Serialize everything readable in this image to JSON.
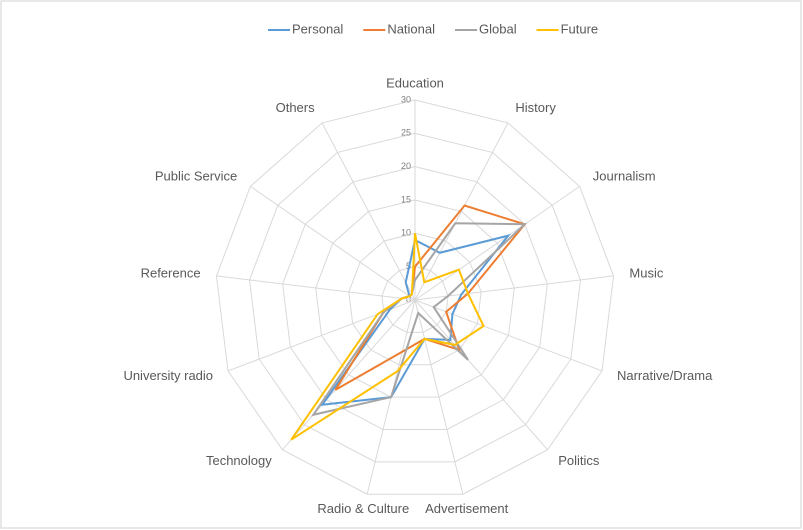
{
  "chart_data": {
    "type": "radar",
    "categories": [
      "Education",
      "History",
      "Journalism",
      "Music",
      "Narrative/Drama",
      "Politics",
      "Advertisement",
      "Radio & Culture",
      "Technology",
      "University radio",
      "Reference",
      "Public Service",
      "Others"
    ],
    "series": [
      {
        "name": "Personal",
        "color": "#5b9bd5",
        "values": [
          9,
          8,
          17,
          7,
          6,
          8,
          6,
          15,
          21,
          4,
          2,
          1,
          3
        ]
      },
      {
        "name": "National",
        "color": "#ed7d31",
        "values": [
          5,
          16,
          20,
          8,
          5,
          10,
          6,
          8,
          18,
          5,
          2,
          1,
          1
        ]
      },
      {
        "name": "Global",
        "color": "#a5a5a5",
        "values": [
          3,
          13,
          20,
          5,
          3,
          12,
          2,
          15,
          23,
          5,
          2,
          1,
          1
        ]
      },
      {
        "name": "Future",
        "color": "#ffc000",
        "values": [
          10,
          3,
          8,
          8,
          11,
          9,
          6,
          11,
          28,
          6,
          2,
          1,
          1
        ]
      }
    ],
    "ylim": [
      0,
      30
    ],
    "yticks": [
      0,
      5,
      10,
      15,
      20,
      25,
      30
    ],
    "grid": true,
    "legend": "top"
  }
}
